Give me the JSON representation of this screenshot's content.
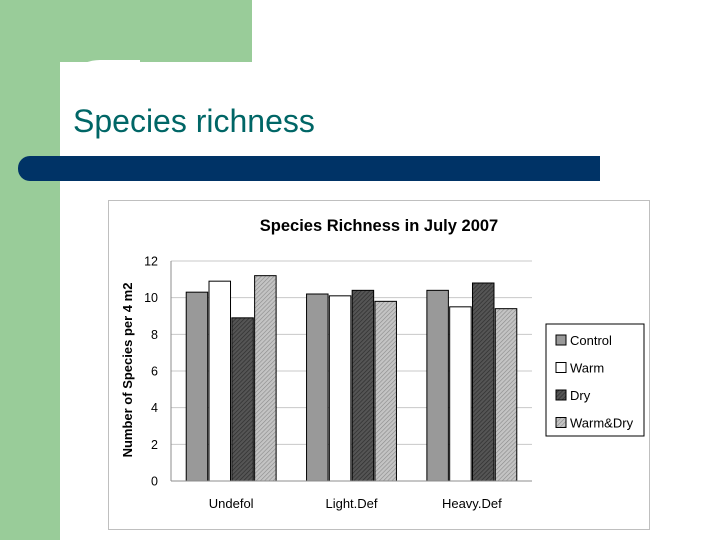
{
  "slide": {
    "title": "Species richness"
  },
  "chart_data": {
    "type": "bar",
    "title": "Species Richness in July 2007",
    "xlabel": "",
    "ylabel": "Number of Species per 4 m2",
    "ylim": [
      0,
      12
    ],
    "yticks": [
      0,
      2,
      4,
      6,
      8,
      10,
      12
    ],
    "grid": true,
    "legend_position": "right",
    "categories": [
      "Undefol",
      "Light.Def",
      "Heavy.Def"
    ],
    "series": [
      {
        "name": "Control",
        "values": [
          10.3,
          10.2,
          10.4
        ],
        "color": "#999999",
        "pattern": "solid"
      },
      {
        "name": "Warm",
        "values": [
          10.9,
          10.1,
          9.5
        ],
        "color": "#ffffff",
        "pattern": "solid"
      },
      {
        "name": "Dry",
        "values": [
          8.9,
          10.4,
          10.8
        ],
        "color": "#555555",
        "pattern": "hatch-dark"
      },
      {
        "name": "Warm&Dry",
        "values": [
          11.2,
          9.8,
          9.4
        ],
        "color": "#bbbbbb",
        "pattern": "hatch-light"
      }
    ]
  }
}
